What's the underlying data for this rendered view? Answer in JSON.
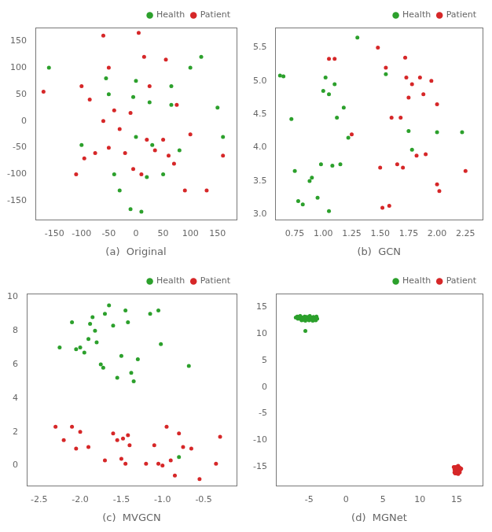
{
  "chart_data": [
    {
      "type": "scatter",
      "x_label": "(a)  Original",
      "grid": false,
      "legend": "upper right",
      "series": [
        {
          "name": "Health",
          "color": "#2ca02c",
          "marker": "circle",
          "x": [
            -160,
            -100,
            -50,
            -55,
            -5,
            0,
            0,
            25,
            30,
            65,
            65,
            100,
            120,
            150,
            -40,
            -30,
            -10,
            10,
            20,
            50,
            80,
            160
          ],
          "y": [
            100,
            -45,
            50,
            80,
            45,
            75,
            -30,
            35,
            -45,
            65,
            30,
            100,
            120,
            25,
            -100,
            -130,
            -165,
            -170,
            -105,
            -100,
            -55,
            -30
          ]
        },
        {
          "name": "Patient",
          "color": "#d62728",
          "marker": "circle",
          "x": [
            -170,
            -110,
            -100,
            -95,
            -85,
            -75,
            -60,
            -60,
            -50,
            -50,
            -40,
            -30,
            -20,
            -10,
            -5,
            5,
            10,
            15,
            20,
            25,
            35,
            50,
            55,
            60,
            70,
            75,
            90,
            100,
            130,
            160
          ],
          "y": [
            55,
            -100,
            65,
            -70,
            40,
            -60,
            0,
            160,
            -50,
            100,
            20,
            -15,
            -60,
            15,
            -90,
            165,
            -100,
            120,
            -35,
            65,
            -55,
            -35,
            115,
            -65,
            -80,
            30,
            -130,
            -25,
            -130,
            -65
          ]
        }
      ],
      "xlim": [
        -185,
        185
      ],
      "ylim": [
        -185,
        175
      ],
      "xticks": [
        -150,
        -100,
        -50,
        0,
        50,
        100,
        150
      ],
      "yticks": [
        -150,
        -100,
        -50,
        0,
        50,
        100,
        150
      ]
    },
    {
      "type": "scatter",
      "x_label": "(b)  GCN",
      "grid": false,
      "legend": "upper right",
      "series": [
        {
          "name": "Health",
          "color": "#2ca02c",
          "marker": "circle",
          "x": [
            0.62,
            0.65,
            0.72,
            0.75,
            0.78,
            0.82,
            0.88,
            0.9,
            0.95,
            0.98,
            1.0,
            1.02,
            1.05,
            1.05,
            1.08,
            1.1,
            1.12,
            1.15,
            1.18,
            1.22,
            1.3,
            1.55,
            1.75,
            1.78,
            2.0,
            2.22
          ],
          "y": [
            5.08,
            5.07,
            4.43,
            3.65,
            3.2,
            3.15,
            3.5,
            3.55,
            3.25,
            3.75,
            4.85,
            5.05,
            3.05,
            4.8,
            3.73,
            4.95,
            4.45,
            3.75,
            4.6,
            4.15,
            5.65,
            5.1,
            4.25,
            3.97,
            4.23,
            4.23
          ]
        },
        {
          "name": "Patient",
          "color": "#d62728",
          "marker": "circle",
          "x": [
            1.05,
            1.1,
            1.25,
            1.48,
            1.5,
            1.52,
            1.55,
            1.58,
            1.6,
            1.65,
            1.68,
            1.7,
            1.72,
            1.73,
            1.75,
            1.78,
            1.82,
            1.85,
            1.88,
            1.9,
            1.95,
            2.0,
            2.0,
            2.02,
            2.25
          ],
          "y": [
            5.33,
            5.33,
            4.2,
            5.5,
            3.7,
            3.1,
            5.2,
            3.13,
            4.45,
            3.75,
            4.45,
            3.7,
            5.35,
            5.05,
            4.75,
            4.95,
            3.88,
            5.05,
            4.8,
            3.9,
            5.0,
            3.45,
            4.65,
            3.35,
            3.65
          ]
        }
      ],
      "xlim": [
        0.58,
        2.4
      ],
      "ylim": [
        2.92,
        5.8
      ],
      "xticks": [
        0.75,
        {
          "value": 1.0,
          "label": "1.00"
        },
        1.25,
        {
          "value": 1.5,
          "label": "1.50"
        },
        1.75,
        {
          "value": 2.0,
          "label": "2.00"
        },
        2.25
      ],
      "yticks": [
        {
          "value": 3.0,
          "label": "3.0"
        },
        3.5,
        {
          "value": 4.0,
          "label": "4.0"
        },
        4.5,
        {
          "value": 5.0,
          "label": "5.0"
        },
        5.5
      ]
    },
    {
      "type": "scatter",
      "x_label": "(c)  MVGCN",
      "grid": false,
      "legend": "upper right",
      "series": [
        {
          "name": "Health",
          "color": "#2ca02c",
          "marker": "circle",
          "x": [
            -2.25,
            -2.1,
            -2.05,
            -2.0,
            -1.95,
            -1.9,
            -1.88,
            -1.85,
            -1.82,
            -1.8,
            -1.75,
            -1.72,
            -1.7,
            -1.65,
            -1.6,
            -1.55,
            -1.5,
            -1.45,
            -1.42,
            -1.38,
            -1.35,
            -1.3,
            -1.15,
            -1.05,
            -1.02,
            -0.8,
            -0.68
          ],
          "y": [
            7.0,
            8.5,
            6.9,
            7.0,
            6.7,
            7.5,
            8.4,
            8.8,
            8.0,
            7.3,
            6.0,
            5.8,
            9.0,
            9.5,
            8.3,
            5.2,
            6.5,
            9.2,
            8.5,
            5.5,
            5.0,
            6.3,
            9.0,
            9.2,
            7.2,
            0.5,
            5.9
          ]
        },
        {
          "name": "Patient",
          "color": "#d62728",
          "marker": "circle",
          "x": [
            -2.3,
            -2.2,
            -2.1,
            -2.05,
            -2.0,
            -1.9,
            -1.7,
            -1.6,
            -1.55,
            -1.5,
            -1.48,
            -1.45,
            -1.42,
            -1.4,
            -1.2,
            -1.1,
            -1.05,
            -1.0,
            -0.95,
            -0.9,
            -0.85,
            -0.8,
            -0.75,
            -0.65,
            -0.55,
            -0.35,
            -0.3
          ],
          "y": [
            2.3,
            1.5,
            2.3,
            1.0,
            2.0,
            1.1,
            0.3,
            1.9,
            1.5,
            0.4,
            1.6,
            0.1,
            1.8,
            1.2,
            0.1,
            1.2,
            0.1,
            0.0,
            2.3,
            0.3,
            -0.6,
            1.9,
            1.1,
            1.0,
            -0.8,
            0.1,
            1.7
          ]
        }
      ],
      "xlim": [
        -2.65,
        -0.1
      ],
      "ylim": [
        -1.2,
        10.2
      ],
      "xticks": [
        -2.5,
        {
          "value": -2.0,
          "label": "-2.0"
        },
        -1.5,
        {
          "value": -1.0,
          "label": "-1.0"
        },
        -0.5
      ],
      "yticks": [
        0,
        2,
        4,
        6,
        8,
        10
      ]
    },
    {
      "type": "scatter",
      "x_label": "(d)  MGNet",
      "grid": false,
      "legend": "upper right",
      "series": [
        {
          "name": "Health",
          "color": "#2ca02c",
          "marker": "circle",
          "x": [
            -6.8,
            -6.6,
            -6.5,
            -6.4,
            -6.3,
            -6.2,
            -6.1,
            -6.0,
            -5.9,
            -5.8,
            -5.7,
            -5.6,
            -5.5,
            -5.4,
            -5.3,
            -5.2,
            -5.1,
            -5.0,
            -4.9,
            -4.8,
            -4.7,
            -4.6,
            -4.5,
            -4.4,
            -4.3,
            -4.2,
            -4.1,
            -4.0,
            -3.9,
            -5.5
          ],
          "y": [
            13.0,
            13.2,
            12.8,
            13.1,
            12.9,
            13.3,
            12.7,
            12.5,
            13.0,
            12.8,
            12.6,
            13.2,
            12.4,
            13.0,
            13.1,
            12.9,
            12.7,
            12.5,
            13.3,
            12.8,
            13.0,
            12.6,
            12.4,
            13.1,
            12.9,
            12.7,
            12.5,
            13.2,
            12.8,
            10.5
          ]
        },
        {
          "name": "Patient",
          "color": "#d62728",
          "marker": "circle",
          "x": [
            14.8,
            15.0,
            15.2,
            15.4,
            15.6,
            14.6,
            14.9,
            15.1,
            15.3,
            15.5,
            14.7,
            15.0,
            15.2,
            15.4,
            14.8,
            15.1,
            15.3,
            15.5,
            14.9,
            15.2,
            15.4,
            14.7,
            15.0,
            15.2,
            14.8,
            15.1,
            15.3,
            14.9,
            15.0,
            15.2
          ],
          "y": [
            -15.0,
            -15.2,
            -14.8,
            -15.1,
            -15.3,
            -15.0,
            -15.2,
            -14.9,
            -15.1,
            -15.3,
            -16.0,
            -16.2,
            -15.8,
            -16.0,
            -16.2,
            -15.0,
            -15.2,
            -15.4,
            -16.1,
            -15.9,
            -15.7,
            -15.5,
            -15.3,
            -16.3,
            -16.1,
            -15.9,
            -15.7,
            -15.5,
            -15.2,
            -15.8
          ]
        }
      ],
      "xlim": [
        -9.5,
        18.5
      ],
      "ylim": [
        -18.5,
        17.5
      ],
      "xticks": [
        -5,
        0,
        5,
        10,
        15
      ],
      "yticks": [
        -15,
        -10,
        -5,
        0,
        5,
        10,
        15
      ]
    }
  ]
}
